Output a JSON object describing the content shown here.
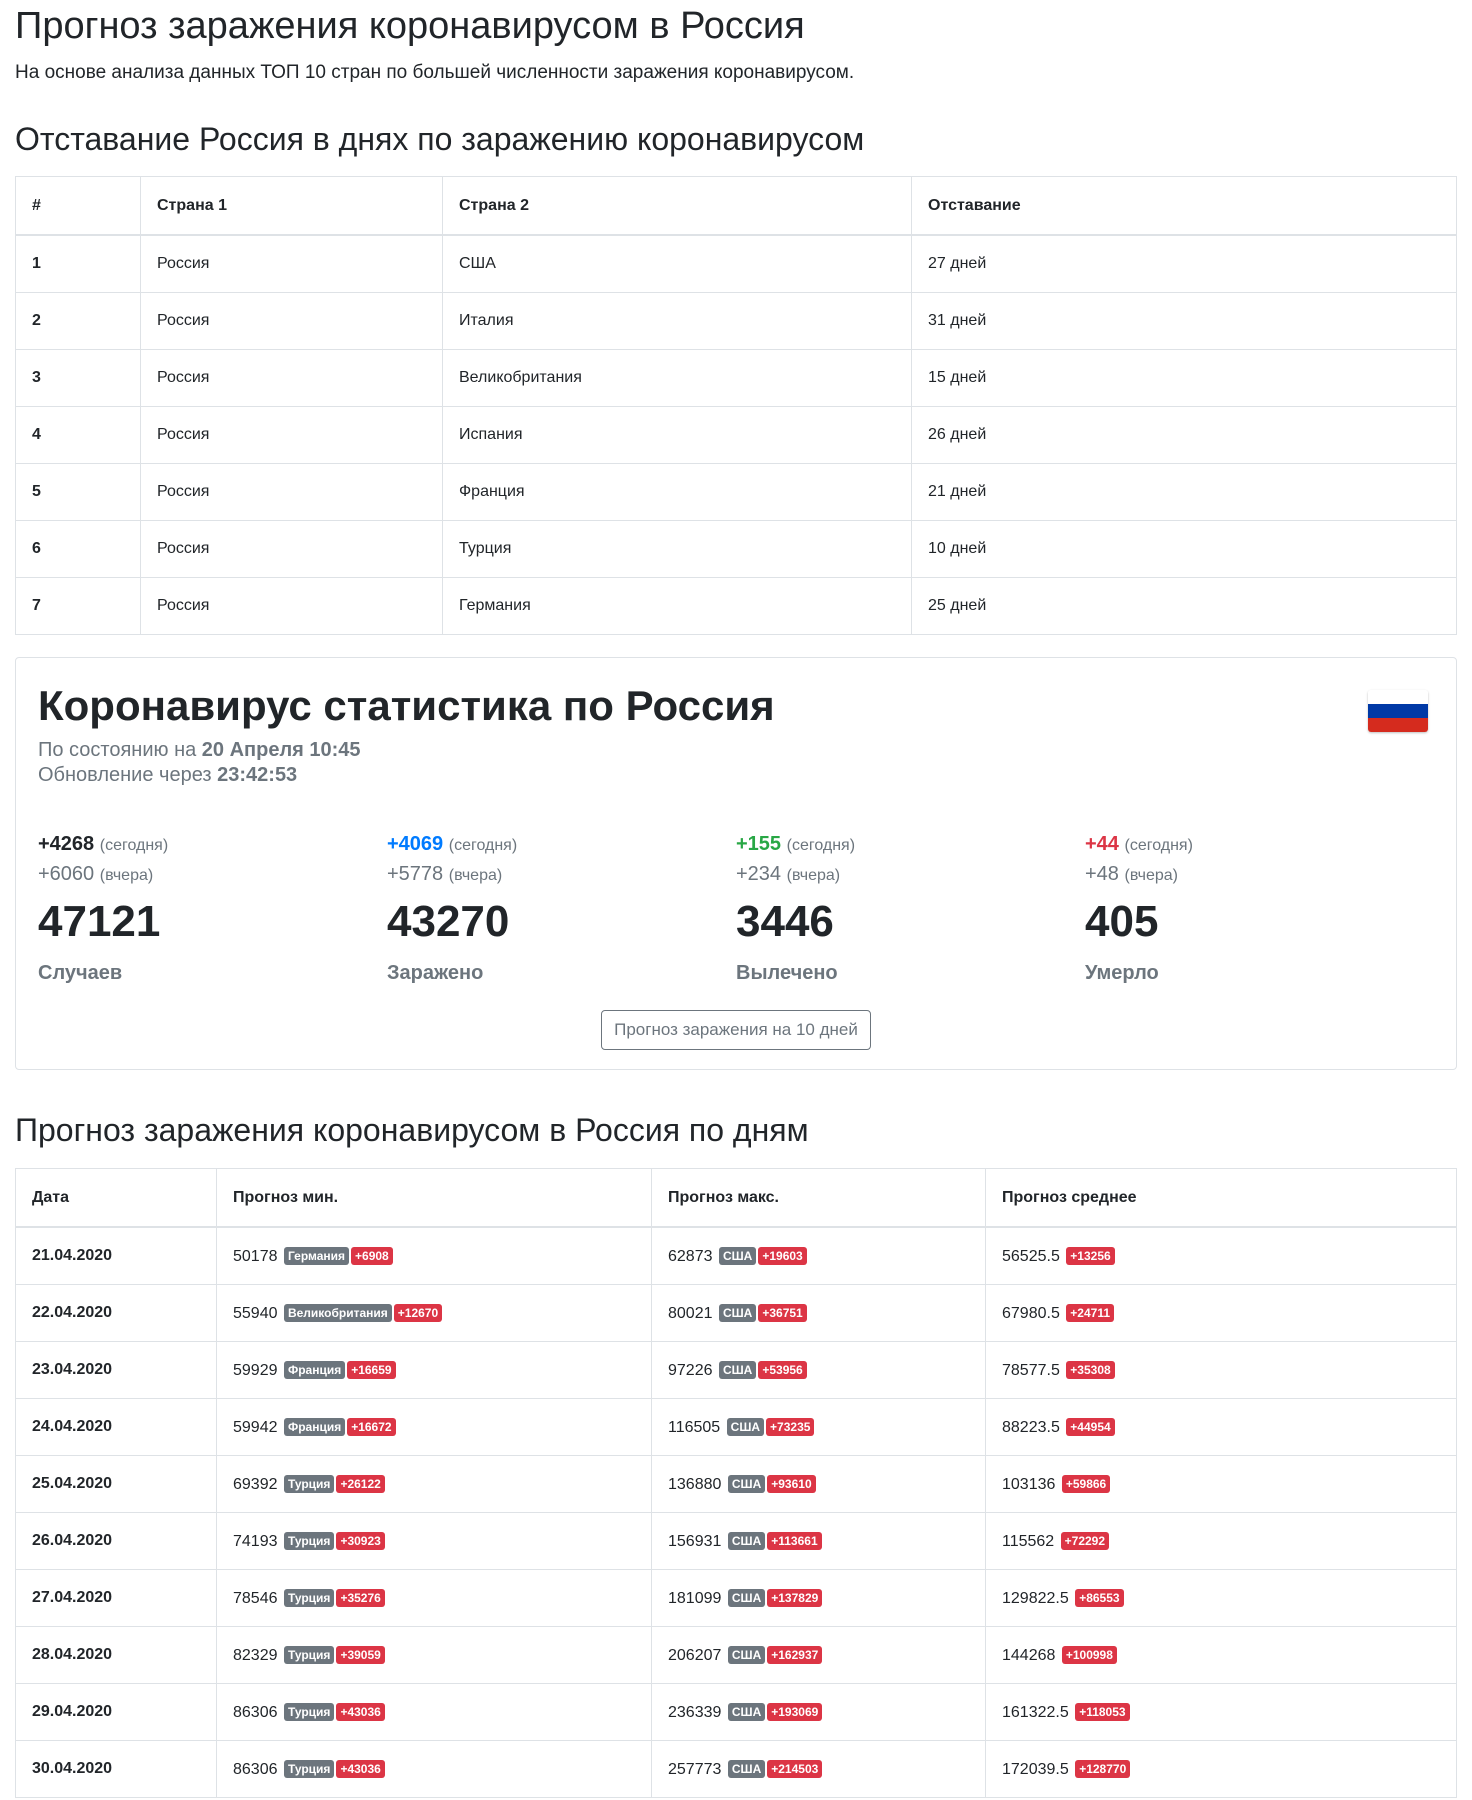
{
  "page": {
    "title": "Прогноз заражения коронавирусом в Россия",
    "lead": "На основе анализа данных ТОП 10 стран по большей численности заражения коронавирусом."
  },
  "lag": {
    "title": "Отставание Россия в днях по заражению коронавирусом",
    "headers": [
      "#",
      "Страна 1",
      "Страна 2",
      "Отставание"
    ],
    "rows": [
      [
        "1",
        "Россия",
        "США",
        "27 дней"
      ],
      [
        "2",
        "Россия",
        "Италия",
        "31 дней"
      ],
      [
        "3",
        "Россия",
        "Великобритания",
        "15 дней"
      ],
      [
        "4",
        "Россия",
        "Испания",
        "26 дней"
      ],
      [
        "5",
        "Россия",
        "Франция",
        "21 дней"
      ],
      [
        "6",
        "Россия",
        "Турция",
        "10 дней"
      ],
      [
        "7",
        "Россия",
        "Германия",
        "25 дней"
      ]
    ]
  },
  "stats": {
    "title": "Коронавирус статистика по Россия",
    "flag_colors": [
      "#ffffff",
      "#0039a6",
      "#d52b1e"
    ],
    "status_prefix": "По состоянию на",
    "status_date": "20 Апреля 10:45",
    "update_prefix": "Обновление через",
    "update_time": "23:42:53",
    "today_label": "(сегодня)",
    "yesterday_label": "(вчера)",
    "items": [
      {
        "today": "+4268",
        "yesterday": "+6060",
        "total": "47121",
        "label": "Случаев",
        "color": "#212529"
      },
      {
        "today": "+4069",
        "yesterday": "+5778",
        "total": "43270",
        "label": "Заражено",
        "color": "#007bff"
      },
      {
        "today": "+155",
        "yesterday": "+234",
        "total": "3446",
        "label": "Вылечено",
        "color": "#28a745"
      },
      {
        "today": "+44",
        "yesterday": "+48",
        "total": "405",
        "label": "Умерло",
        "color": "#dc3545"
      }
    ],
    "button_label": "Прогноз заражения на 10 дней"
  },
  "forecast": {
    "title": "Прогноз заражения коронавирусом в Россия по дням",
    "headers": [
      "Дата",
      "Прогноз мин.",
      "Прогноз макс.",
      "Прогноз среднее"
    ],
    "rows": [
      {
        "date": "21.04.2020",
        "min": "50178",
        "min_country": "Германия",
        "min_delta": "+6908",
        "max": "62873",
        "max_country": "США",
        "max_delta": "+19603",
        "avg": "56525.5",
        "avg_delta": "+13256"
      },
      {
        "date": "22.04.2020",
        "min": "55940",
        "min_country": "Великобритания",
        "min_delta": "+12670",
        "max": "80021",
        "max_country": "США",
        "max_delta": "+36751",
        "avg": "67980.5",
        "avg_delta": "+24711"
      },
      {
        "date": "23.04.2020",
        "min": "59929",
        "min_country": "Франция",
        "min_delta": "+16659",
        "max": "97226",
        "max_country": "США",
        "max_delta": "+53956",
        "avg": "78577.5",
        "avg_delta": "+35308"
      },
      {
        "date": "24.04.2020",
        "min": "59942",
        "min_country": "Франция",
        "min_delta": "+16672",
        "max": "116505",
        "max_country": "США",
        "max_delta": "+73235",
        "avg": "88223.5",
        "avg_delta": "+44954"
      },
      {
        "date": "25.04.2020",
        "min": "69392",
        "min_country": "Турция",
        "min_delta": "+26122",
        "max": "136880",
        "max_country": "США",
        "max_delta": "+93610",
        "avg": "103136",
        "avg_delta": "+59866"
      },
      {
        "date": "26.04.2020",
        "min": "74193",
        "min_country": "Турция",
        "min_delta": "+30923",
        "max": "156931",
        "max_country": "США",
        "max_delta": "+113661",
        "avg": "115562",
        "avg_delta": "+72292"
      },
      {
        "date": "27.04.2020",
        "min": "78546",
        "min_country": "Турция",
        "min_delta": "+35276",
        "max": "181099",
        "max_country": "США",
        "max_delta": "+137829",
        "avg": "129822.5",
        "avg_delta": "+86553"
      },
      {
        "date": "28.04.2020",
        "min": "82329",
        "min_country": "Турция",
        "min_delta": "+39059",
        "max": "206207",
        "max_country": "США",
        "max_delta": "+162937",
        "avg": "144268",
        "avg_delta": "+100998"
      },
      {
        "date": "29.04.2020",
        "min": "86306",
        "min_country": "Турция",
        "min_delta": "+43036",
        "max": "236339",
        "max_country": "США",
        "max_delta": "+193069",
        "avg": "161322.5",
        "avg_delta": "+118053"
      },
      {
        "date": "30.04.2020",
        "min": "86306",
        "min_country": "Турция",
        "min_delta": "+43036",
        "max": "257773",
        "max_country": "США",
        "max_delta": "+214503",
        "avg": "172039.5",
        "avg_delta": "+128770"
      }
    ]
  }
}
